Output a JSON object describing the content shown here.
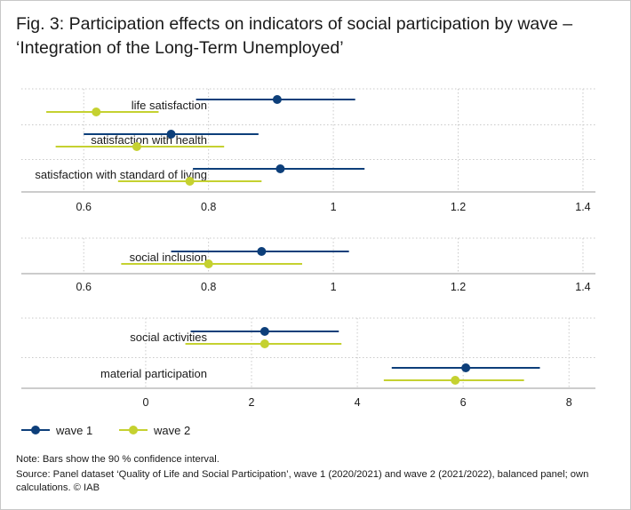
{
  "title": "Fig. 3: Participation effects on indicators of social participation by wave – ‘Integration of the Long-Term Unemployed’",
  "note": "Note: Bars show the 90 % confidence interval.",
  "source": "Source: Panel dataset ‘Quality of Life and Social Participation’, wave 1 (2020/2021) and wave 2 (2021/2022), balanced panel; own calculations. © IAB",
  "colors": {
    "wave1": "#0d3f7a",
    "wave2": "#c5d130",
    "grid": "#c9c9c9",
    "axis": "#9a9a9a"
  },
  "chart_data": [
    {
      "type": "scatter",
      "subtype": "dot-and-whisker",
      "xlim": [
        0.5,
        1.42
      ],
      "xticks": [
        0.6,
        0.8,
        1,
        1.2,
        1.4
      ],
      "xtick_labels": [
        "0.6",
        "0.8",
        "1",
        "1.2",
        "1.4"
      ],
      "categories": [
        "life satisfaction",
        "satisfaction with health",
        "satisfaction with standard of living"
      ],
      "series": [
        {
          "name": "wave 1",
          "values": [
            0.91,
            0.74,
            0.915
          ],
          "ci_low": [
            0.78,
            0.6,
            0.775
          ],
          "ci_high": [
            1.035,
            0.88,
            1.05
          ]
        },
        {
          "name": "wave 2",
          "values": [
            0.62,
            0.685,
            0.77
          ],
          "ci_low": [
            0.54,
            0.555,
            0.655
          ],
          "ci_high": [
            0.72,
            0.825,
            0.885
          ]
        }
      ]
    },
    {
      "type": "scatter",
      "subtype": "dot-and-whisker",
      "xlim": [
        0.5,
        1.42
      ],
      "xticks": [
        0.6,
        0.8,
        1,
        1.2,
        1.4
      ],
      "xtick_labels": [
        "0.6",
        "0.8",
        "1",
        "1.2",
        "1.4"
      ],
      "categories": [
        "social inclusion"
      ],
      "series": [
        {
          "name": "wave 1",
          "values": [
            0.885
          ],
          "ci_low": [
            0.74
          ],
          "ci_high": [
            1.025
          ]
        },
        {
          "name": "wave 2",
          "values": [
            0.8
          ],
          "ci_low": [
            0.66
          ],
          "ci_high": [
            0.95
          ]
        }
      ]
    },
    {
      "type": "scatter",
      "subtype": "dot-and-whisker",
      "xlim": [
        -2.35,
        8.5
      ],
      "xticks": [
        0,
        2,
        4,
        6,
        8
      ],
      "xtick_labels": [
        "0",
        "2",
        "4",
        "6",
        "8"
      ],
      "categories": [
        "social activities",
        "material participation"
      ],
      "series": [
        {
          "name": "wave 1",
          "values": [
            2.25,
            6.05
          ],
          "ci_low": [
            0.85,
            4.65
          ],
          "ci_high": [
            3.65,
            7.45
          ]
        },
        {
          "name": "wave 2",
          "values": [
            2.25,
            5.85
          ],
          "ci_low": [
            0.75,
            4.5
          ],
          "ci_high": [
            3.7,
            7.15
          ]
        }
      ]
    }
  ],
  "legend": {
    "position": "bottom-left",
    "items": [
      "wave 1",
      "wave 2"
    ]
  }
}
